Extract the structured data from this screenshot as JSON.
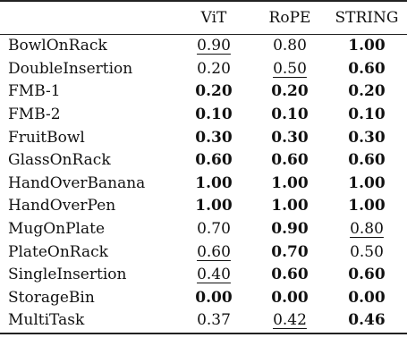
{
  "table": {
    "headers": [
      "",
      "ViT",
      "RoPE",
      "STRING"
    ],
    "rows": [
      {
        "task": "BowlOnRack",
        "vit": "0.90",
        "rope": "0.80",
        "string": "1.00"
      },
      {
        "task": "DoubleInsertion",
        "vit": "0.20",
        "rope": "0.50",
        "string": "0.60"
      },
      {
        "task": "FMB-1",
        "vit": "0.20",
        "rope": "0.20",
        "string": "0.20"
      },
      {
        "task": "FMB-2",
        "vit": "0.10",
        "rope": "0.10",
        "string": "0.10"
      },
      {
        "task": "FruitBowl",
        "vit": "0.30",
        "rope": "0.30",
        "string": "0.30"
      },
      {
        "task": "GlassOnRack",
        "vit": "0.60",
        "rope": "0.60",
        "string": "0.60"
      },
      {
        "task": "HandOverBanana",
        "vit": "1.00",
        "rope": "1.00",
        "string": "1.00"
      },
      {
        "task": "HandOverPen",
        "vit": "1.00",
        "rope": "1.00",
        "string": "1.00"
      },
      {
        "task": "MugOnPlate",
        "vit": "0.70",
        "rope": "0.90",
        "string": "0.80"
      },
      {
        "task": "PlateOnRack",
        "vit": "0.60",
        "rope": "0.70",
        "string": "0.50"
      },
      {
        "task": "SingleInsertion",
        "vit": "0.40",
        "rope": "0.60",
        "string": "0.60"
      },
      {
        "task": "StorageBin",
        "vit": "0.00",
        "rope": "0.00",
        "string": "0.00"
      },
      {
        "task": "MultiTask",
        "vit": "0.37",
        "rope": "0.42",
        "string": "0.46"
      }
    ]
  }
}
